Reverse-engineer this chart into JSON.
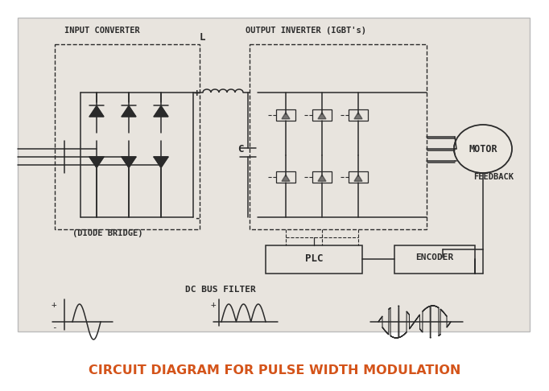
{
  "title": "CIRCUIT DIAGRAM FOR PULSE WIDTH MODULATION",
  "title_color": "#d4541a",
  "title_fontsize": 11.5,
  "bg_outer": "#ffffff",
  "bg_inner": "#e8e4de",
  "sk": "#2a2a2a",
  "sk_light": "#555555",
  "lw": 1.1,
  "labels": {
    "input_converter": "INPUT CONVERTER",
    "L": "L",
    "output_inverter": "OUTPUT INVERTER (IGBT's)",
    "C": "C",
    "motor": "MOTOR",
    "feedback": "FEEDBACK",
    "diode_bridge": "(DIODE BRIDGE)",
    "plc": "PLC",
    "encoder": "ENCODER",
    "dc_bus_filter": "DC BUS FILTER",
    "plus1": "+",
    "minus1": "-",
    "plus2": "+"
  }
}
